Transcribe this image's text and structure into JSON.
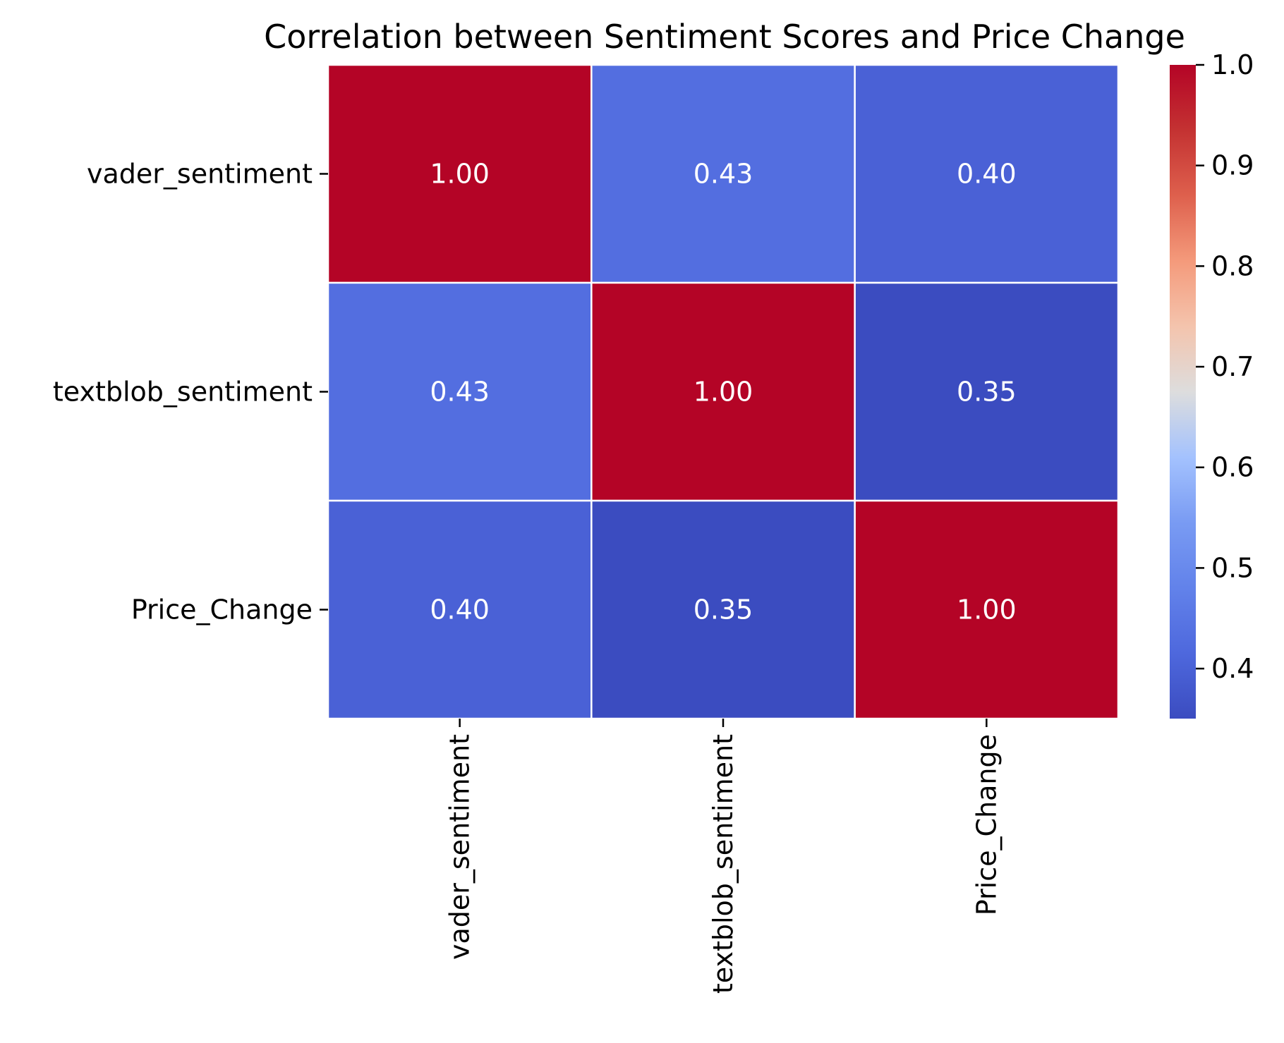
{
  "chart_data": {
    "type": "heatmap",
    "title": "Correlation between Sentiment Scores and Price Change",
    "row_labels": [
      "vader_sentiment",
      "textblob_sentiment",
      "Price_Change"
    ],
    "col_labels": [
      "vader_sentiment",
      "textblob_sentiment",
      "Price_Change"
    ],
    "values": [
      [
        1.0,
        0.43,
        0.4
      ],
      [
        0.43,
        1.0,
        0.35
      ],
      [
        0.4,
        0.35,
        1.0
      ]
    ],
    "value_labels": [
      [
        "1.00",
        "0.43",
        "0.40"
      ],
      [
        "0.43",
        "1.00",
        "0.35"
      ],
      [
        "0.40",
        "0.35",
        "1.00"
      ]
    ],
    "colormap": "coolwarm",
    "colorbar": {
      "vmin": 0.3503,
      "vmax": 1.0,
      "ticks": [
        0.4,
        0.5,
        0.6,
        0.7,
        0.8,
        0.9,
        1.0
      ],
      "tick_labels": [
        "0.4",
        "0.5",
        "0.6",
        "0.7",
        "0.8",
        "0.9",
        "1.0"
      ]
    },
    "xlabel": "",
    "ylabel": "",
    "grid": false,
    "colors": {
      "cell_border": "#ffffff",
      "label_text": "#ffffff",
      "low": "#3b4cc0",
      "mid": "#dddddd",
      "high": "#b40426"
    }
  }
}
